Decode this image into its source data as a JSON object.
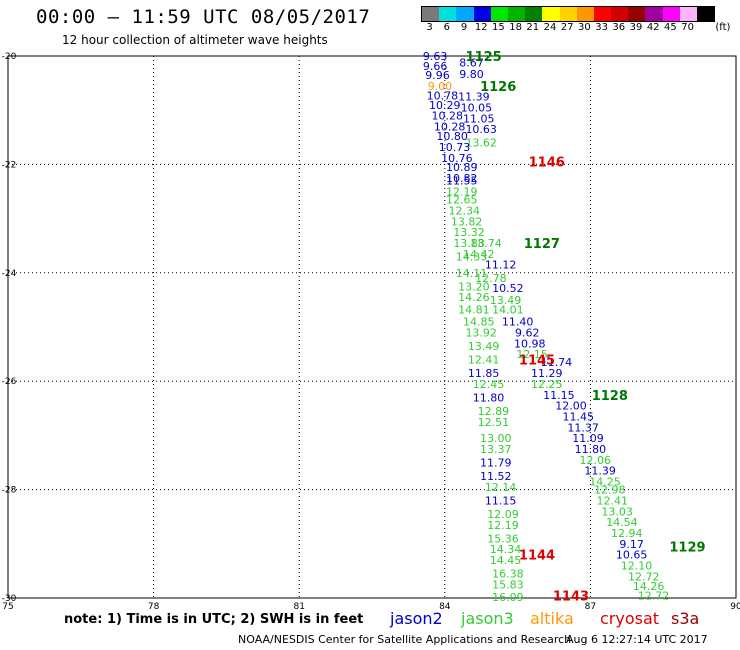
{
  "header": {
    "title": "00:00 – 11:59 UTC 08/05/2017",
    "subtitle": "12 hour collection of altimeter wave heights"
  },
  "colorbar": {
    "unit": "(ft)",
    "bins": [
      {
        "label": "3",
        "color": "#7a7a7a"
      },
      {
        "label": "6",
        "color": "#00e0e0"
      },
      {
        "label": "9",
        "color": "#00a8ff"
      },
      {
        "label": "12",
        "color": "#0000e6"
      },
      {
        "label": "15",
        "color": "#00e600"
      },
      {
        "label": "18",
        "color": "#00b400"
      },
      {
        "label": "21",
        "color": "#008200"
      },
      {
        "label": "24",
        "color": "#ffff00"
      },
      {
        "label": "27",
        "color": "#ffd200"
      },
      {
        "label": "30",
        "color": "#ff9600"
      },
      {
        "label": "33",
        "color": "#ff0000"
      },
      {
        "label": "36",
        "color": "#d20000"
      },
      {
        "label": "39",
        "color": "#960000"
      },
      {
        "label": "42",
        "color": "#a000a0"
      },
      {
        "label": "45",
        "color": "#ff00ff"
      },
      {
        "label": "70",
        "color": "#ffb4ff"
      },
      {
        "label": "",
        "color": "#000000"
      }
    ]
  },
  "chart_data": {
    "type": "scatter",
    "x_axis": {
      "ticks": [
        75,
        78,
        81,
        84,
        87,
        90
      ],
      "labels": [
        "75",
        "78",
        "81",
        "84",
        "87",
        "90"
      ],
      "range": [
        75,
        90
      ]
    },
    "y_axis": {
      "ticks": [
        -20,
        -22,
        -24,
        -26,
        -28,
        -30
      ],
      "labels": [
        "-20",
        "-22",
        "-24",
        "-26",
        "-28",
        "-30"
      ],
      "range": [
        -30,
        -20
      ]
    },
    "colors": {
      "jason2": "#0000cc",
      "jason3": "#33cc33",
      "altika": "#ff9900",
      "cryosat": "#dd0000",
      "s3a": "#990000",
      "pass_green": "#007700",
      "pass_red": "#dd0000"
    },
    "passes": [
      {
        "label": "1125",
        "lon": 84.8,
        "lat": -20.0,
        "color": "pass_green"
      },
      {
        "label": "1126",
        "lon": 85.1,
        "lat": -20.55,
        "color": "pass_green"
      },
      {
        "label": "1146",
        "lon": 86.1,
        "lat": -21.95,
        "color": "pass_red"
      },
      {
        "label": "1127",
        "lon": 86.0,
        "lat": -23.45,
        "color": "pass_green"
      },
      {
        "label": "1145",
        "lon": 85.9,
        "lat": -25.6,
        "color": "pass_red"
      },
      {
        "label": "1128",
        "lon": 87.4,
        "lat": -26.25,
        "color": "pass_green"
      },
      {
        "label": "1144",
        "lon": 85.9,
        "lat": -29.2,
        "color": "pass_red"
      },
      {
        "label": "1129",
        "lon": 89.0,
        "lat": -29.05,
        "color": "pass_green"
      },
      {
        "label": "1143",
        "lon": 86.6,
        "lat": -29.95,
        "color": "pass_red"
      }
    ],
    "points": [
      {
        "v": "9.63",
        "lon": 83.8,
        "lat": -20.0,
        "s": "jason2"
      },
      {
        "v": "8.67",
        "lon": 84.55,
        "lat": -20.12,
        "s": "jason2"
      },
      {
        "v": "9.66",
        "lon": 83.8,
        "lat": -20.18,
        "s": "jason2"
      },
      {
        "v": "9.80",
        "lon": 84.55,
        "lat": -20.33,
        "s": "jason2"
      },
      {
        "v": "9.96",
        "lon": 83.85,
        "lat": -20.35,
        "s": "jason2"
      },
      {
        "v": "9.00",
        "lon": 83.9,
        "lat": -20.55,
        "s": "altika"
      },
      {
        "v": "11.39",
        "lon": 84.6,
        "lat": -20.75,
        "s": "jason2"
      },
      {
        "v": "10.78",
        "lon": 83.95,
        "lat": -20.73,
        "s": "jason2"
      },
      {
        "v": "10.05",
        "lon": 84.65,
        "lat": -20.95,
        "s": "jason2"
      },
      {
        "v": "10.29",
        "lon": 84.0,
        "lat": -20.9,
        "s": "jason2"
      },
      {
        "v": "10.28",
        "lon": 84.05,
        "lat": -21.1,
        "s": "jason2"
      },
      {
        "v": "11.05",
        "lon": 84.7,
        "lat": -21.15,
        "s": "jason2"
      },
      {
        "v": "10.28",
        "lon": 84.1,
        "lat": -21.3,
        "s": "jason2"
      },
      {
        "v": "10.63",
        "lon": 84.75,
        "lat": -21.35,
        "s": "jason2"
      },
      {
        "v": "10.80",
        "lon": 84.15,
        "lat": -21.48,
        "s": "jason2"
      },
      {
        "v": "13.62",
        "lon": 84.75,
        "lat": -21.6,
        "s": "jason3"
      },
      {
        "v": "10.73",
        "lon": 84.2,
        "lat": -21.68,
        "s": "jason2"
      },
      {
        "v": "10.76",
        "lon": 84.25,
        "lat": -21.88,
        "s": "jason2"
      },
      {
        "v": "10.89",
        "lon": 84.35,
        "lat": -22.05,
        "s": "jason2"
      },
      {
        "v": "10.82",
        "lon": 84.35,
        "lat": -22.25,
        "s": "jason2"
      },
      {
        "v": "11.55",
        "lon": 84.35,
        "lat": -22.3,
        "s": "jason2"
      },
      {
        "v": "12.19",
        "lon": 84.35,
        "lat": -22.5,
        "s": "jason3"
      },
      {
        "v": "12.65",
        "lon": 84.35,
        "lat": -22.65,
        "s": "jason3"
      },
      {
        "v": "12.34",
        "lon": 84.4,
        "lat": -22.85,
        "s": "jason3"
      },
      {
        "v": "13.82",
        "lon": 84.45,
        "lat": -23.05,
        "s": "jason3"
      },
      {
        "v": "13.32",
        "lon": 84.5,
        "lat": -23.25,
        "s": "jason3"
      },
      {
        "v": "13.74",
        "lon": 84.85,
        "lat": -23.45,
        "s": "jason3"
      },
      {
        "v": "13.88",
        "lon": 84.5,
        "lat": -23.45,
        "s": "jason3"
      },
      {
        "v": "14.42",
        "lon": 84.7,
        "lat": -23.65,
        "s": "jason3"
      },
      {
        "v": "14.33",
        "lon": 84.55,
        "lat": -23.7,
        "s": "jason3"
      },
      {
        "v": "11.12",
        "lon": 85.15,
        "lat": -23.85,
        "s": "jason2"
      },
      {
        "v": "14.11",
        "lon": 84.55,
        "lat": -24.0,
        "s": "jason3"
      },
      {
        "v": "12.78",
        "lon": 84.95,
        "lat": -24.1,
        "s": "jason3"
      },
      {
        "v": "13.20",
        "lon": 84.6,
        "lat": -24.25,
        "s": "jason3"
      },
      {
        "v": "10.52",
        "lon": 85.3,
        "lat": -24.28,
        "s": "jason2"
      },
      {
        "v": "14.26",
        "lon": 84.6,
        "lat": -24.45,
        "s": "jason3"
      },
      {
        "v": "13.49",
        "lon": 85.25,
        "lat": -24.5,
        "s": "jason3"
      },
      {
        "v": "14.81",
        "lon": 84.6,
        "lat": -24.68,
        "s": "jason3"
      },
      {
        "v": "14.01",
        "lon": 85.3,
        "lat": -24.68,
        "s": "jason3"
      },
      {
        "v": "14.85",
        "lon": 84.7,
        "lat": -24.9,
        "s": "jason3"
      },
      {
        "v": "11.40",
        "lon": 85.5,
        "lat": -24.9,
        "s": "jason2"
      },
      {
        "v": "13.92",
        "lon": 84.75,
        "lat": -25.1,
        "s": "jason3"
      },
      {
        "v": "9.62",
        "lon": 85.7,
        "lat": -25.1,
        "s": "jason2"
      },
      {
        "v": "10.98",
        "lon": 85.75,
        "lat": -25.3,
        "s": "jason2"
      },
      {
        "v": "13.49",
        "lon": 84.8,
        "lat": -25.35,
        "s": "jason3"
      },
      {
        "v": "12.15",
        "lon": 85.8,
        "lat": -25.5,
        "s": "jason3"
      },
      {
        "v": "12.41",
        "lon": 84.8,
        "lat": -25.6,
        "s": "jason3"
      },
      {
        "v": "11.74",
        "lon": 86.3,
        "lat": -25.65,
        "s": "jason2"
      },
      {
        "v": "11.85",
        "lon": 84.8,
        "lat": -25.85,
        "s": "jason2"
      },
      {
        "v": "11.29",
        "lon": 86.1,
        "lat": -25.85,
        "s": "jason2"
      },
      {
        "v": "12.25",
        "lon": 86.1,
        "lat": -26.05,
        "s": "jason3"
      },
      {
        "v": "12.45",
        "lon": 84.9,
        "lat": -26.05,
        "s": "jason3"
      },
      {
        "v": "11.15",
        "lon": 86.35,
        "lat": -26.25,
        "s": "jason2"
      },
      {
        "v": "11.80",
        "lon": 84.9,
        "lat": -26.3,
        "s": "jason2"
      },
      {
        "v": "12.00",
        "lon": 86.6,
        "lat": -26.45,
        "s": "jason2"
      },
      {
        "v": "12.89",
        "lon": 85.0,
        "lat": -26.55,
        "s": "jason3"
      },
      {
        "v": "11.45",
        "lon": 86.75,
        "lat": -26.65,
        "s": "jason2"
      },
      {
        "v": "12.51",
        "lon": 85.0,
        "lat": -26.75,
        "s": "jason3"
      },
      {
        "v": "11.37",
        "lon": 86.85,
        "lat": -26.85,
        "s": "jason2"
      },
      {
        "v": "13.00",
        "lon": 85.05,
        "lat": -27.05,
        "s": "jason3"
      },
      {
        "v": "11.09",
        "lon": 86.95,
        "lat": -27.05,
        "s": "jason2"
      },
      {
        "v": "11.80",
        "lon": 87.0,
        "lat": -27.25,
        "s": "jason2"
      },
      {
        "v": "13.37",
        "lon": 85.05,
        "lat": -27.25,
        "s": "jason3"
      },
      {
        "v": "12.06",
        "lon": 87.1,
        "lat": -27.45,
        "s": "jason3"
      },
      {
        "v": "11.79",
        "lon": 85.05,
        "lat": -27.5,
        "s": "jason2"
      },
      {
        "v": "11.39",
        "lon": 87.2,
        "lat": -27.65,
        "s": "jason2"
      },
      {
        "v": "11.52",
        "lon": 85.05,
        "lat": -27.75,
        "s": "jason2"
      },
      {
        "v": "14.25",
        "lon": 87.3,
        "lat": -27.85,
        "s": "jason3"
      },
      {
        "v": "12.14",
        "lon": 85.15,
        "lat": -27.95,
        "s": "jason3"
      },
      {
        "v": "12.98",
        "lon": 87.4,
        "lat": -28.0,
        "s": "jason3"
      },
      {
        "v": "11.15",
        "lon": 85.15,
        "lat": -28.2,
        "s": "jason2"
      },
      {
        "v": "12.41",
        "lon": 87.45,
        "lat": -28.2,
        "s": "jason3"
      },
      {
        "v": "12.09",
        "lon": 85.2,
        "lat": -28.45,
        "s": "jason3"
      },
      {
        "v": "13.03",
        "lon": 87.55,
        "lat": -28.4,
        "s": "jason3"
      },
      {
        "v": "14.54",
        "lon": 87.65,
        "lat": -28.6,
        "s": "jason3"
      },
      {
        "v": "12.19",
        "lon": 85.2,
        "lat": -28.65,
        "s": "jason3"
      },
      {
        "v": "12.94",
        "lon": 87.75,
        "lat": -28.8,
        "s": "jason3"
      },
      {
        "v": "15.36",
        "lon": 85.2,
        "lat": -28.9,
        "s": "jason3"
      },
      {
        "v": "9.17",
        "lon": 87.85,
        "lat": -29.0,
        "s": "jason2"
      },
      {
        "v": "14.34",
        "lon": 85.25,
        "lat": -29.1,
        "s": "jason3"
      },
      {
        "v": "10.65",
        "lon": 87.85,
        "lat": -29.2,
        "s": "jason2"
      },
      {
        "v": "14.45",
        "lon": 85.25,
        "lat": -29.3,
        "s": "jason3"
      },
      {
        "v": "12.10",
        "lon": 87.95,
        "lat": -29.4,
        "s": "jason3"
      },
      {
        "v": "16.38",
        "lon": 85.3,
        "lat": -29.55,
        "s": "jason3"
      },
      {
        "v": "12.72",
        "lon": 88.1,
        "lat": -29.6,
        "s": "jason3"
      },
      {
        "v": "15.83",
        "lon": 85.3,
        "lat": -29.75,
        "s": "jason3"
      },
      {
        "v": "14.26",
        "lon": 88.2,
        "lat": -29.78,
        "s": "jason3"
      },
      {
        "v": "16.09",
        "lon": 85.3,
        "lat": -29.98,
        "s": "jason3"
      },
      {
        "v": "12.72",
        "lon": 88.3,
        "lat": -29.95,
        "s": "jason3"
      }
    ]
  },
  "note": "note: 1) Time is in UTC; 2) SWH is in feet",
  "legend": [
    {
      "name": "jason2",
      "color": "#0000cc"
    },
    {
      "name": "jason3",
      "color": "#33cc33"
    },
    {
      "name": "altika",
      "color": "#ff9900"
    },
    {
      "name": "cryosat",
      "color": "#dd0000"
    },
    {
      "name": "s3a",
      "color": "#990000"
    }
  ],
  "footer": {
    "credit": "NOAA/NESDIS Center for Satellite Applications and Research",
    "timestamp": "Aug  6 12:27:14 UTC 2017"
  }
}
